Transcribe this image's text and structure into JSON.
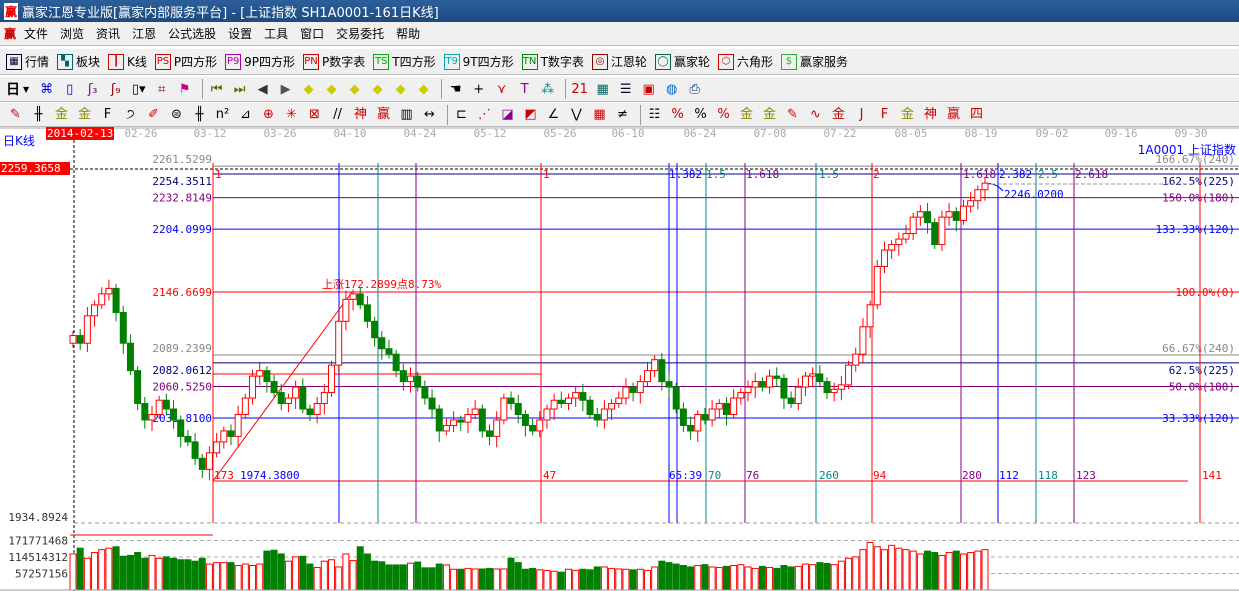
{
  "window": {
    "title": "赢家江恩专业版[赢家内部服务平台] - [上证指数  SH1A0001-161日K线]",
    "logo": "赢"
  },
  "menu": [
    "文件",
    "浏览",
    "资讯",
    "江恩",
    "公式选股",
    "设置",
    "工具",
    "窗口",
    "交易委托",
    "帮助"
  ],
  "toolbar1": [
    {
      "label": "行情",
      "icon": "table-icon",
      "glyph": "▦",
      "color": "#003"
    },
    {
      "label": "板块",
      "icon": "blocks-icon",
      "glyph": "▚",
      "color": "#066"
    },
    {
      "label": "K线",
      "icon": "kline-icon",
      "glyph": "┃",
      "color": "#c00"
    },
    {
      "label": "P四方形",
      "icon": "ps-icon",
      "glyph": "PS",
      "color": "#c00"
    },
    {
      "label": "9P四方形",
      "icon": "p9-icon",
      "glyph": "P9",
      "color": "#a0a"
    },
    {
      "label": "P数字表",
      "icon": "pn-icon",
      "glyph": "PN",
      "color": "#c00"
    },
    {
      "label": "T四方形",
      "icon": "ts-icon",
      "glyph": "TS",
      "color": "#0a0"
    },
    {
      "label": "9T四方形",
      "icon": "t9-icon",
      "glyph": "T9",
      "color": "#0aa"
    },
    {
      "label": "T数字表",
      "icon": "tn-icon",
      "glyph": "TN",
      "color": "#080"
    },
    {
      "label": "江恩轮",
      "icon": "gann-wheel-icon",
      "glyph": "◎",
      "color": "#800"
    },
    {
      "label": "赢家轮",
      "icon": "big-wheel-icon",
      "glyph": "◯",
      "color": "#064"
    },
    {
      "label": "六角形",
      "icon": "hexagon-icon",
      "glyph": "⬡",
      "color": "#c00"
    },
    {
      "label": "赢家服务",
      "icon": "dollar-icon",
      "glyph": "$",
      "color": "#3a3"
    }
  ],
  "toolbar2": {
    "period": "日",
    "icons": [
      {
        "name": "network-icon",
        "glyph": "⌘",
        "color": "#00c"
      },
      {
        "name": "clipboard-icon",
        "glyph": "▯",
        "color": "#00c"
      },
      {
        "name": "wave3-icon",
        "glyph": "ʃ₃",
        "color": "#808"
      },
      {
        "name": "wave9-icon",
        "glyph": "ʃ₉",
        "color": "#800"
      },
      {
        "name": "candle-type-icon",
        "glyph": "▯▾",
        "color": "#000"
      },
      {
        "name": "pattern-icon",
        "glyph": "⌗",
        "color": "#800"
      },
      {
        "name": "flag-icon",
        "glyph": "⚑",
        "color": "#c08"
      },
      {
        "name": "first-icon",
        "glyph": "⏮",
        "color": "#660"
      },
      {
        "name": "last-icon",
        "glyph": "⏭",
        "color": "#660"
      },
      {
        "name": "prev-icon",
        "glyph": "◀",
        "color": "#333"
      },
      {
        "name": "next-icon",
        "glyph": "▶",
        "color": "#555"
      },
      {
        "name": "diamond-left-icon",
        "glyph": "◆",
        "color": "#cc0"
      },
      {
        "name": "diamond-right-icon",
        "glyph": "◆",
        "color": "#cc0"
      },
      {
        "name": "diamond-h-icon",
        "glyph": "◆",
        "color": "#cc0"
      },
      {
        "name": "diamond-x-icon",
        "glyph": "◆",
        "color": "#cc0"
      },
      {
        "name": "diamond-v-icon",
        "glyph": "◆",
        "color": "#cc0"
      },
      {
        "name": "diamond-all-icon",
        "glyph": "◆",
        "color": "#cc0"
      },
      {
        "name": "hand-icon",
        "glyph": "☚",
        "color": "#000"
      },
      {
        "name": "crosshair-icon",
        "glyph": "+",
        "color": "#000"
      },
      {
        "name": "zigzag-icon",
        "glyph": "⋎",
        "color": "#c00"
      },
      {
        "name": "text-tool-icon",
        "glyph": "T",
        "color": "#808"
      },
      {
        "name": "scatter-icon",
        "glyph": "⁂",
        "color": "#088"
      },
      {
        "name": "calendar-icon",
        "glyph": "21",
        "color": "#c00"
      },
      {
        "name": "calculator-icon",
        "glyph": "▦",
        "color": "#066"
      },
      {
        "name": "notes-icon",
        "glyph": "☰",
        "color": "#003"
      },
      {
        "name": "save-icon",
        "glyph": "▣",
        "color": "#c00"
      },
      {
        "name": "globe-icon",
        "glyph": "◍",
        "color": "#06c"
      },
      {
        "name": "printer-icon",
        "glyph": "⎙",
        "color": "#036"
      }
    ]
  },
  "toolbar3": [
    {
      "name": "pen-icon",
      "glyph": "✎",
      "color": "#c00"
    },
    {
      "name": "lines-icon",
      "glyph": "╫",
      "color": "#000"
    },
    {
      "name": "gold-icon",
      "glyph": "金",
      "color": "#880"
    },
    {
      "name": "gold2-icon",
      "glyph": "金",
      "color": "#880"
    },
    {
      "name": "fib-f-icon",
      "glyph": "F",
      "color": "#000"
    },
    {
      "name": "spiral-icon",
      "glyph": "੭",
      "color": "#000"
    },
    {
      "name": "pen2-icon",
      "glyph": "✐",
      "color": "#c00"
    },
    {
      "name": "circle-grid-icon",
      "glyph": "⊜",
      "color": "#000"
    },
    {
      "name": "hash-icon",
      "glyph": "╫",
      "color": "#000"
    },
    {
      "name": "n2-icon",
      "glyph": "n²",
      "color": "#000"
    },
    {
      "name": "angle-icon",
      "glyph": "⊿",
      "color": "#000"
    },
    {
      "name": "target-icon",
      "glyph": "⊕",
      "color": "#c00"
    },
    {
      "name": "web-icon",
      "glyph": "✳",
      "color": "#c00"
    },
    {
      "name": "box-target-icon",
      "glyph": "⊠",
      "color": "#c00"
    },
    {
      "name": "slash-icon",
      "glyph": "//",
      "color": "#000"
    },
    {
      "name": "shen-icon",
      "glyph": "神",
      "color": "#c00"
    },
    {
      "name": "ying-icon",
      "glyph": "赢",
      "color": "#c00"
    },
    {
      "name": "ruler-icon",
      "glyph": "▥",
      "color": "#000"
    },
    {
      "name": "measure-icon",
      "glyph": "↔",
      "color": "#000"
    },
    {
      "name": "box-line-icon",
      "glyph": "⊏",
      "color": "#000"
    },
    {
      "name": "fan-icon",
      "glyph": "⋰",
      "color": "#c00"
    },
    {
      "name": "fan-box-icon",
      "glyph": "◪",
      "color": "#808"
    },
    {
      "name": "fan-box2-icon",
      "glyph": "◩",
      "color": "#c00"
    },
    {
      "name": "angle2-icon",
      "glyph": "∠",
      "color": "#000"
    },
    {
      "name": "v-icon",
      "glyph": "⋁",
      "color": "#000"
    },
    {
      "name": "grid-icon",
      "glyph": "▦",
      "color": "#c00"
    },
    {
      "name": "parallel-icon",
      "glyph": "≠",
      "color": "#000"
    },
    {
      "name": "bars-icon",
      "glyph": "☷",
      "color": "#000"
    },
    {
      "name": "percent-line-icon",
      "glyph": "%",
      "color": "#c00"
    },
    {
      "name": "percent-icon",
      "glyph": "%",
      "color": "#000"
    },
    {
      "name": "percent-lines-icon",
      "glyph": "%",
      "color": "#c00"
    },
    {
      "name": "gold-circle-icon",
      "glyph": "金",
      "color": "#880"
    },
    {
      "name": "gold-lines-icon",
      "glyph": "金",
      "color": "#880"
    },
    {
      "name": "pen-lines-icon",
      "glyph": "✎",
      "color": "#c00"
    },
    {
      "name": "wave-icon",
      "glyph": "∿",
      "color": "#c00"
    },
    {
      "name": "gold-red-icon",
      "glyph": "金",
      "color": "#c00"
    },
    {
      "name": "j-angle-icon",
      "glyph": "J",
      "color": "#c00"
    },
    {
      "name": "f-angle-icon",
      "glyph": "F",
      "color": "#c00"
    },
    {
      "name": "gold-angle-icon",
      "glyph": "金",
      "color": "#880"
    },
    {
      "name": "shen-angle-icon",
      "glyph": "神",
      "color": "#c00"
    },
    {
      "name": "ying-angle-icon",
      "glyph": "赢",
      "color": "#c00"
    },
    {
      "name": "four-angle-icon",
      "glyph": "四",
      "color": "#c00"
    }
  ],
  "chart": {
    "period_label": "日K线",
    "cursor_date": "2014-02-13",
    "cursor_price": "2259.3658",
    "symbol_label": "1A0001  上证指数",
    "dates": [
      "02-26",
      "03-12",
      "03-26",
      "04-10",
      "04-24",
      "05-12",
      "05-26",
      "06-10",
      "06-24",
      "07-08",
      "07-22",
      "08-05",
      "08-19",
      "09-02",
      "09-16",
      "09-30"
    ],
    "levels": [
      {
        "price": 2261.5299,
        "left": "2261.5299",
        "right": "166.67%(240)",
        "color": "#888888"
      },
      {
        "price": 2254.3511,
        "left": "2254.3511",
        "right": "162.5%(225)",
        "color": "#000080"
      },
      {
        "price": 2232.8149,
        "left": "2232.8149",
        "right": "150.0%(180)",
        "color": "#800080"
      },
      {
        "price": 2204.0999,
        "left": "2204.0999",
        "right": "133.33%(120)",
        "color": "#0000ff"
      },
      {
        "price": 2146.6699,
        "left": "2146.6699",
        "right": "100.0%(0)",
        "color": "#ff0000"
      },
      {
        "price": 2089.2399,
        "left": "2089.2399",
        "right": "66.67%(240)",
        "color": "#888888"
      },
      {
        "price": 2082.0612,
        "left": "2082.0612",
        "right": "62.5%(225)",
        "color": "#000080"
      },
      {
        "price": 2060.525,
        "left": "2060.5250",
        "right": "50.0%(180)",
        "color": "#800080"
      },
      {
        "price": 2031.81,
        "left": "2031.8100",
        "right": "33.33%(120)",
        "color": "#0000ff"
      }
    ],
    "low_label": "1974.3800",
    "rise_annotation": "上涨172.2899点8.73%",
    "last_high_label": "2246.0200",
    "time_lines_top": [
      "1",
      "1",
      "1.382",
      "1.5",
      "1.618",
      "1.5",
      "2",
      "1.618",
      "2.382",
      "2.5",
      "2.618"
    ],
    "time_lines_bottom": [
      "173",
      "47",
      "65:39",
      "70",
      "76",
      "260",
      "94",
      "280",
      "112",
      "118",
      "123",
      "141"
    ],
    "chart_data": {
      "type": "candlestick",
      "close": [
        2107,
        2100,
        2125,
        2135,
        2145,
        2150,
        2128,
        2100,
        2075,
        2045,
        2030,
        2035,
        2048,
        2040,
        2030,
        2015,
        2010,
        1995,
        1985,
        2000,
        2010,
        2020,
        2015,
        2035,
        2050,
        2070,
        2075,
        2065,
        2055,
        2045,
        2050,
        2060,
        2040,
        2035,
        2045,
        2055,
        2080,
        2120,
        2140,
        2145,
        2135,
        2120,
        2105,
        2095,
        2090,
        2075,
        2065,
        2070,
        2060,
        2050,
        2040,
        2020,
        2025,
        2030,
        2028,
        2035,
        2040,
        2020,
        2015,
        2030,
        2050,
        2045,
        2035,
        2025,
        2020,
        2030,
        2040,
        2048,
        2045,
        2050,
        2055,
        2048,
        2035,
        2030,
        2040,
        2045,
        2050,
        2060,
        2055,
        2065,
        2075,
        2085,
        2065,
        2060,
        2040,
        2025,
        2020,
        2035,
        2030,
        2040,
        2045,
        2035,
        2050,
        2055,
        2060,
        2065,
        2060,
        2070,
        2068,
        2050,
        2045,
        2060,
        2070,
        2072,
        2065,
        2055,
        2058,
        2062,
        2080,
        2090,
        2115,
        2135,
        2170,
        2185,
        2190,
        2195,
        2200,
        2215,
        2220,
        2210,
        2190,
        2215,
        2220,
        2212,
        2225,
        2230,
        2240,
        2246
      ],
      "volume": [
        125000000.0,
        145000000.0,
        110000000.0,
        130000000.0,
        140000000.0,
        145000000.0,
        150000000.0,
        117000000.0,
        120000000.0,
        130000000.0,
        110000000.0,
        120000000.0,
        110000000.0,
        115000000.0,
        110000000.0,
        105000000.0,
        105000000.0,
        100000000.0,
        110000000.0,
        90000000.0,
        95000000.0,
        95000000.0,
        95000000.0,
        85000000.0,
        90000000.0,
        85000000.0,
        90000000.0,
        135000000.0,
        138000000.0,
        125000000.0,
        100000000.0,
        115000000.0,
        117000000.0,
        90000000.0,
        78000000.0,
        100000000.0,
        105000000.0,
        80000000.0,
        125000000.0,
        102000000.0,
        150000000.0,
        125000000.0,
        100000000.0,
        98000000.0,
        87000000.0,
        87000000.0,
        87000000.0,
        93000000.0,
        97000000.0,
        77000000.0,
        77000000.0,
        90000000.0,
        87000000.0,
        72000000.0,
        72000000.0,
        75000000.0,
        73000000.0,
        73000000.0,
        75000000.0,
        73000000.0,
        73000000.0,
        110000000.0,
        95000000.0,
        72000000.0,
        75000000.0,
        70000000.0,
        68000000.0,
        65000000.0,
        62000000.0,
        72000000.0,
        68000000.0,
        72000000.0,
        70000000.0,
        80000000.0,
        80000000.0,
        75000000.0,
        73000000.0,
        72000000.0,
        70000000.0,
        72000000.0,
        68000000.0,
        80000000.0,
        100000000.0,
        95000000.0,
        90000000.0,
        85000000.0,
        80000000.0,
        85000000.0,
        88000000.0,
        80000000.0,
        78000000.0,
        82000000.0,
        85000000.0,
        88000000.0,
        80000000.0,
        75000000.0,
        82000000.0,
        78000000.0,
        75000000.0,
        85000000.0,
        80000000.0,
        82000000.0,
        90000000.0,
        88000000.0,
        95000000.0,
        92000000.0,
        88000000.0,
        100000000.0,
        110000000.0,
        115000000.0,
        140000000.0,
        165000000.0,
        150000000.0,
        140000000.0,
        155000000.0,
        145000000.0,
        140000000.0,
        135000000.0,
        125000000.0,
        135000000.0,
        130000000.0,
        120000000.0,
        130000000.0,
        135000000.0,
        125000000.0,
        130000000.0,
        135000000.0,
        140000000.0
      ],
      "up_color": "#ff0000",
      "down_color": "#008000"
    },
    "volume_panel": {
      "top_label": "1934.8924",
      "ticks": [
        "171771468",
        "114514312",
        "57257156"
      ]
    }
  }
}
